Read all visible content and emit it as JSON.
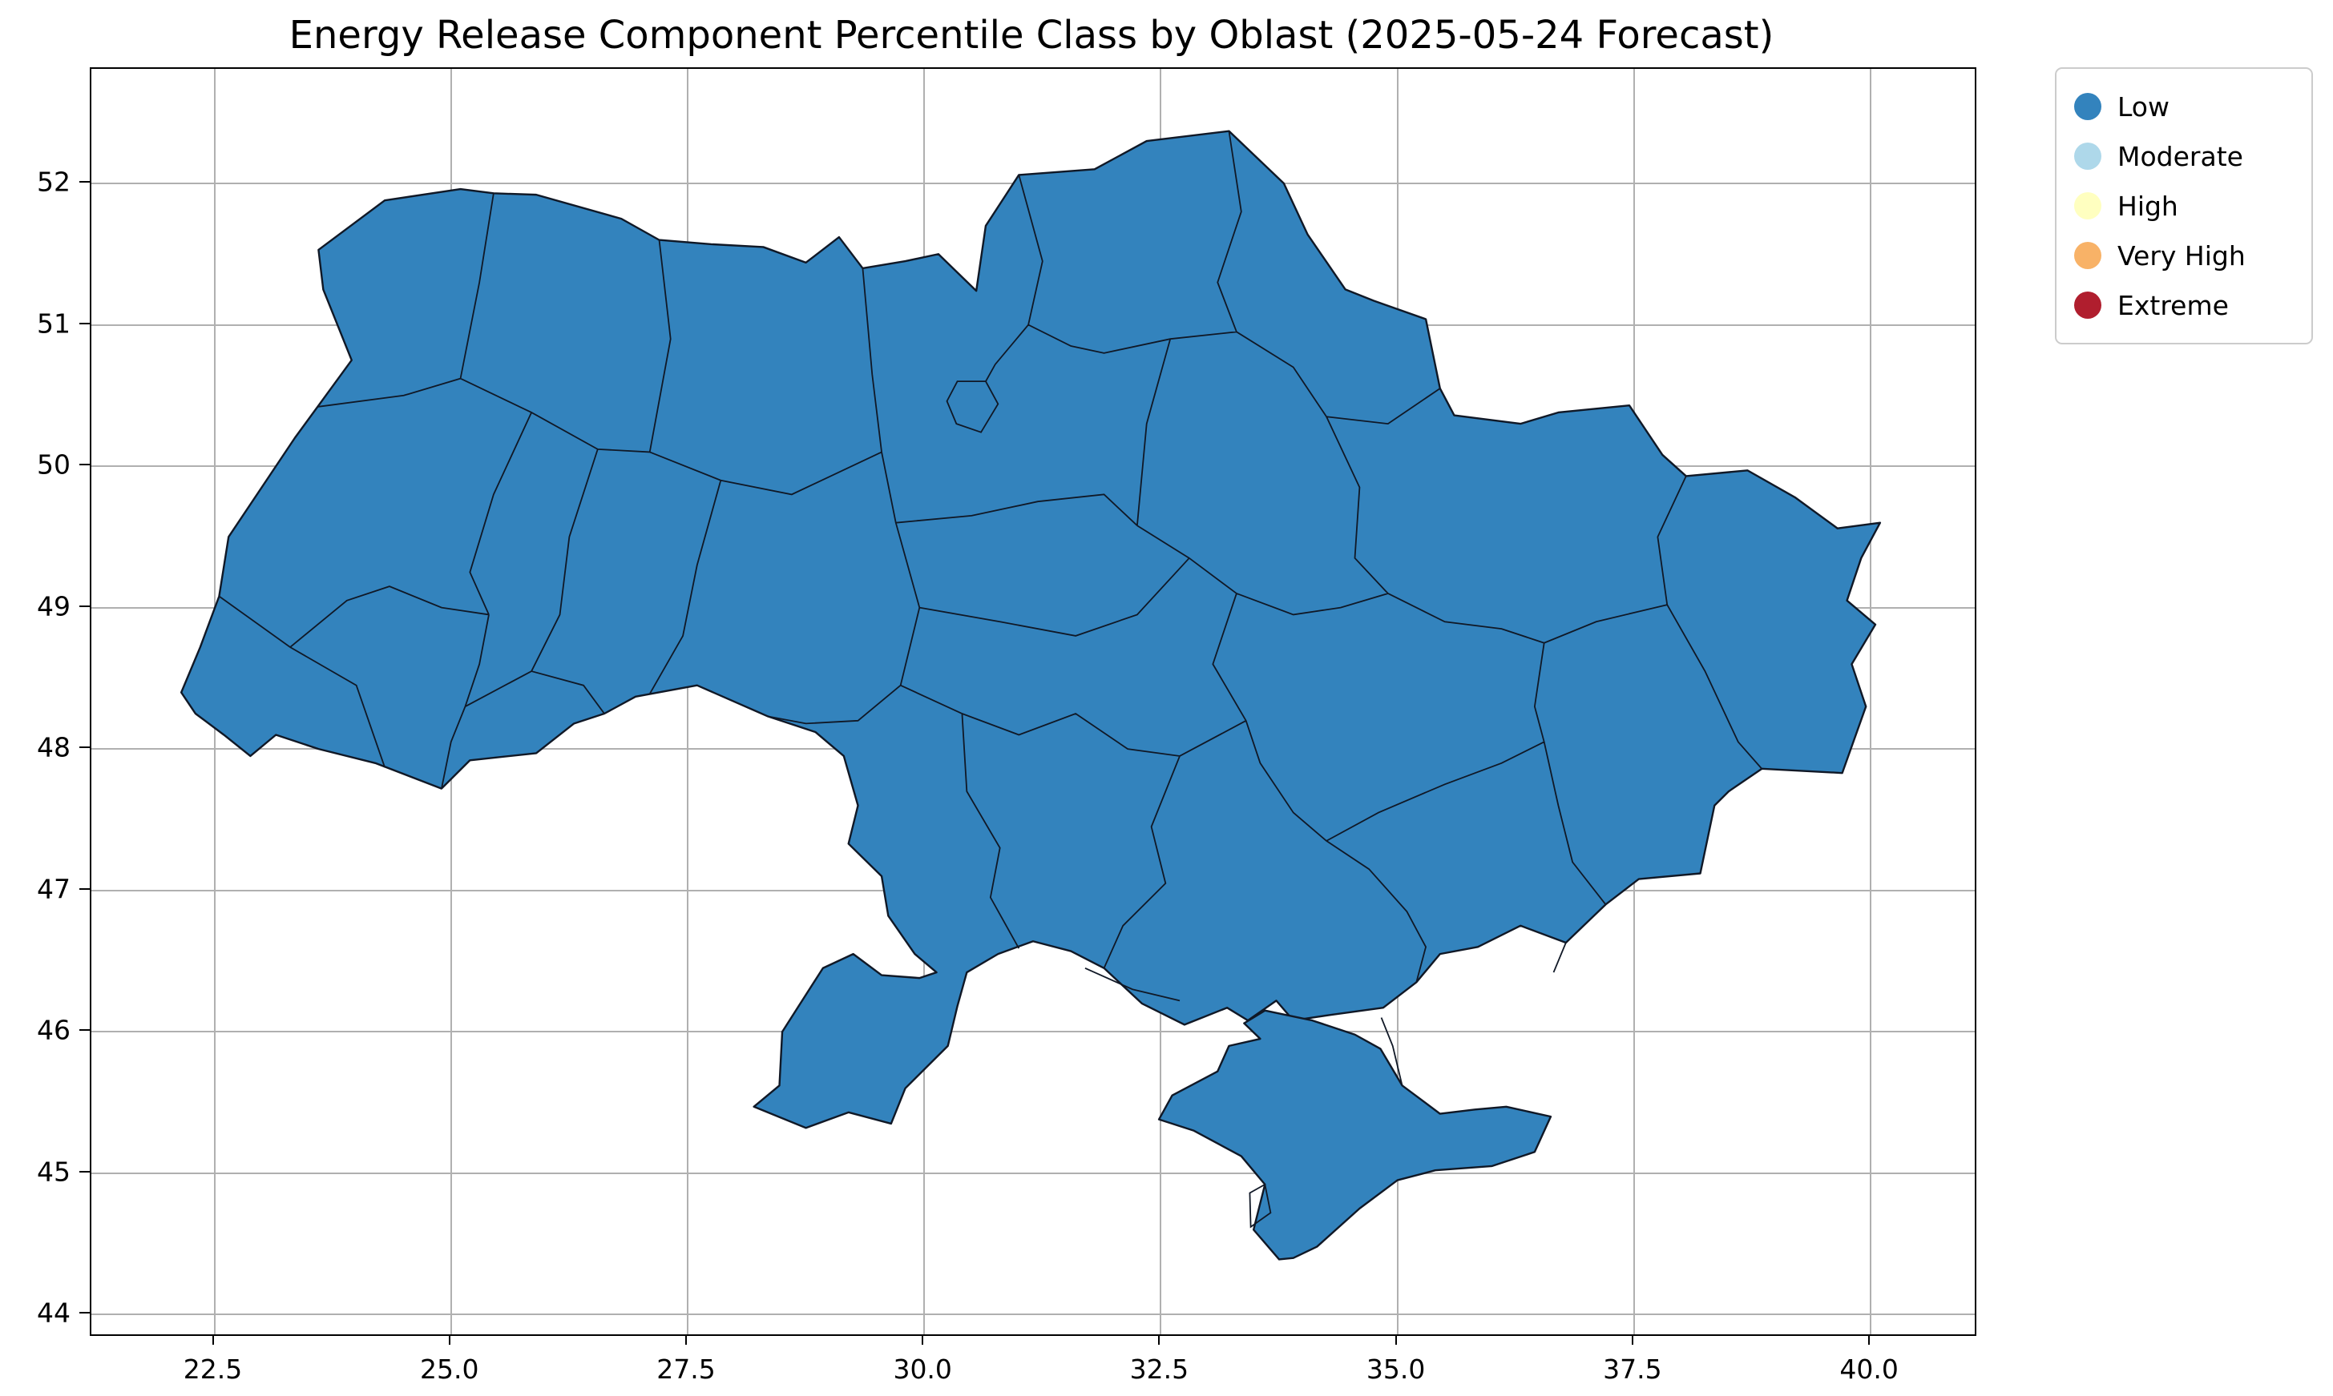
{
  "title": "Energy Release Component Percentile Class by Oblast (2025-05-24 Forecast)",
  "axes": {
    "x_range": [
      21.2,
      41.1
    ],
    "y_range": [
      43.86,
      52.81
    ],
    "x_ticks": [
      {
        "value": 22.5,
        "label": "22.5"
      },
      {
        "value": 25.0,
        "label": "25.0"
      },
      {
        "value": 27.5,
        "label": "27.5"
      },
      {
        "value": 30.0,
        "label": "30.0"
      },
      {
        "value": 32.5,
        "label": "32.5"
      },
      {
        "value": 35.0,
        "label": "35.0"
      },
      {
        "value": 37.5,
        "label": "37.5"
      },
      {
        "value": 40.0,
        "label": "40.0"
      }
    ],
    "y_ticks": [
      {
        "value": 44,
        "label": "44"
      },
      {
        "value": 45,
        "label": "45"
      },
      {
        "value": 46,
        "label": "46"
      },
      {
        "value": 47,
        "label": "47"
      },
      {
        "value": 48,
        "label": "48"
      },
      {
        "value": 49,
        "label": "49"
      },
      {
        "value": 50,
        "label": "50"
      },
      {
        "value": 51,
        "label": "51"
      },
      {
        "value": 52,
        "label": "52"
      }
    ],
    "grid": true,
    "grid_color": "#b0b0b0",
    "spine_color": "#000000"
  },
  "legend": {
    "items": [
      {
        "label": "Low",
        "color": "#3383bd"
      },
      {
        "label": "Moderate",
        "color": "#aed8ea"
      },
      {
        "label": "High",
        "color": "#ffffc0"
      },
      {
        "label": "Very High",
        "color": "#f8b267"
      },
      {
        "label": "Extreme",
        "color": "#b01e2e"
      }
    ]
  },
  "map": {
    "region": "Ukraine (oblast boundaries)",
    "fill_class": "Low",
    "border_color": "#101826"
  },
  "chart_data": {
    "type": "heatmap",
    "subtype": "choropleth-map",
    "title": "Energy Release Component Percentile Class by Oblast (2025-05-24 Forecast)",
    "forecast_date": "2025-05-24",
    "geography": "Ukraine oblasts",
    "classes": [
      "Low",
      "Moderate",
      "High",
      "Very High",
      "Extreme"
    ],
    "class_colors": [
      "#3383bd",
      "#aed8ea",
      "#ffffc0",
      "#f8b267",
      "#b01e2e"
    ],
    "observed_values": "All oblasts shown in the Low class (uniform blue fill)",
    "xlim": [
      21.2,
      41.1
    ],
    "ylim": [
      43.86,
      52.81
    ],
    "x_tick_values": [
      22.5,
      25.0,
      27.5,
      30.0,
      32.5,
      35.0,
      37.5,
      40.0
    ],
    "y_tick_values": [
      44,
      45,
      46,
      47,
      48,
      49,
      50,
      51,
      52
    ],
    "grid": true,
    "legend_position": "upper-right outside plot"
  }
}
